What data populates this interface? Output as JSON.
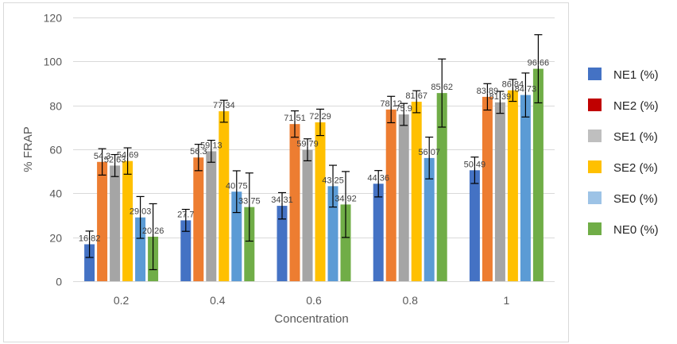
{
  "chart_data": {
    "type": "bar",
    "title": "",
    "xlabel": "Concentration",
    "ylabel": "% FRAP",
    "ylim": [
      0,
      120
    ],
    "yticks": [
      0,
      20,
      40,
      60,
      80,
      100,
      120
    ],
    "ytick_labels": [
      "0",
      "20",
      "40",
      "60",
      "80",
      "100",
      "120"
    ],
    "grid": true,
    "legend_position": "right",
    "categories": [
      "0.2",
      "0.4",
      "0.6",
      "0.8",
      "1"
    ],
    "series": [
      {
        "name": "NE1 (%)",
        "color": "#4472C4",
        "legend_color": "#4472C4",
        "values": [
          16.82,
          27.7,
          34.31,
          44.36,
          50.49
        ],
        "labels": [
          "16.82",
          "27.7",
          "34.31",
          "44.36",
          "50.49"
        ],
        "errors": [
          6,
          5,
          6,
          6,
          6
        ]
      },
      {
        "name": "NE2 (%)",
        "color": "#ED7D31",
        "legend_color": "#C00000",
        "values": [
          54.3,
          56.3,
          71.51,
          78.12,
          83.89
        ],
        "labels": [
          "54.3",
          "56.3",
          "71.51",
          "78.12",
          "83.89"
        ],
        "errors": [
          6,
          6,
          6,
          6,
          6
        ]
      },
      {
        "name": "SE1 (%)",
        "color": "#A5A5A5",
        "legend_color": "#BFBFBF",
        "values": [
          52.63,
          59.13,
          59.79,
          75.9,
          81.39
        ],
        "labels": [
          "52.63",
          "59.13",
          "59.79",
          "75.9",
          "81.39"
        ],
        "errors": [
          5,
          5,
          5,
          5,
          5
        ]
      },
      {
        "name": "SE2 (%)",
        "color": "#FFC000",
        "legend_color": "#FFC000",
        "values": [
          54.69,
          77.34,
          72.29,
          81.67,
          86.84
        ],
        "labels": [
          "54.69",
          "77.34",
          "72.29",
          "81.67",
          "86.84"
        ],
        "errors": [
          6,
          5,
          6,
          5,
          5
        ]
      },
      {
        "name": "SE0 (%)",
        "color": "#5B9BD5",
        "legend_color": "#9DC3E6",
        "values": [
          29.03,
          40.75,
          43.25,
          56.07,
          84.73
        ],
        "labels": [
          "29.03",
          "40.75",
          "43.25",
          "56.07",
          "84.73"
        ],
        "errors": [
          9.5,
          9.5,
          9.5,
          9.5,
          10
        ]
      },
      {
        "name": "NE0 (%)",
        "color": "#70AD47",
        "legend_color": "#70AD47",
        "values": [
          20.26,
          33.75,
          34.92,
          85.62,
          96.66
        ],
        "labels": [
          "20.26",
          "33.75",
          "34.92",
          "85.62",
          "96.66"
        ],
        "errors": [
          15,
          15.5,
          15,
          15.5,
          15.5
        ]
      }
    ]
  }
}
